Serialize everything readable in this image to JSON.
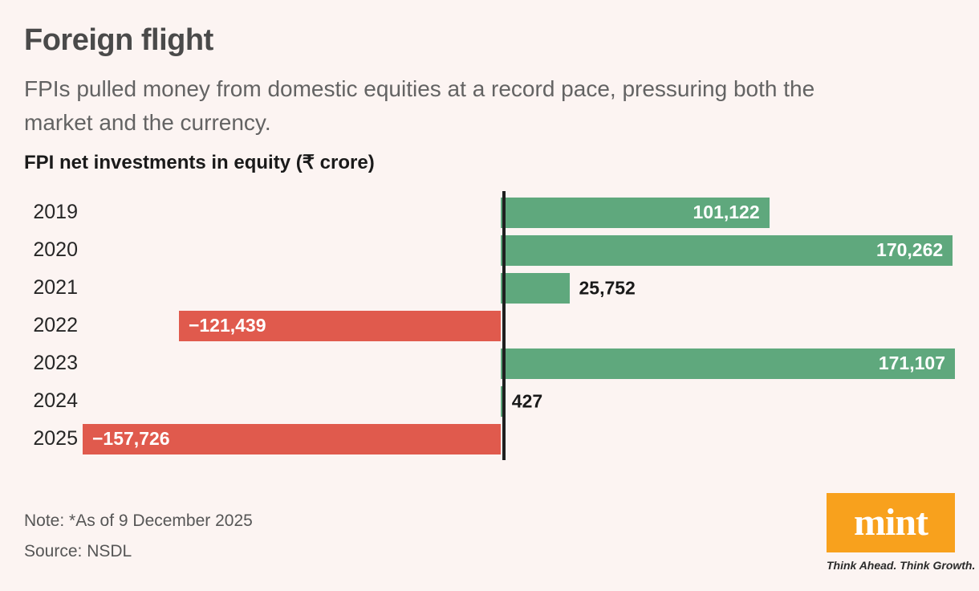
{
  "header": {
    "title": "Foreign flight",
    "subtitle": "FPIs pulled money from domestic equities at a record pace, pressuring both the market and the currency."
  },
  "chart_data": {
    "type": "bar",
    "orientation": "horizontal",
    "title": "FPI net investments in equity (₹ crore)",
    "categories": [
      "2019",
      "2020",
      "2021",
      "2022",
      "2023",
      "2024",
      "2025"
    ],
    "values": [
      101122,
      170262,
      25752,
      -121439,
      171107,
      427,
      -157726
    ],
    "value_labels": [
      "101,122",
      "170,262",
      "25,752",
      "−121,439",
      "171,107",
      "427",
      "−157,726"
    ],
    "xlim": [
      -157726,
      171107
    ],
    "grid": false,
    "legend": false,
    "positive_color": "#5FA87D",
    "negative_color": "#E05A4D",
    "axis_color": "#1f1f1f",
    "inside_label_color": "#ffffff",
    "outside_label_color": "#1a1a1a"
  },
  "footer": {
    "note": "Note: *As of 9 December 2025",
    "source": "Source: NSDL"
  },
  "branding": {
    "logo_text": "mint",
    "logo_bg": "#F8A11D",
    "tagline": "Think Ahead. Think Growth."
  }
}
